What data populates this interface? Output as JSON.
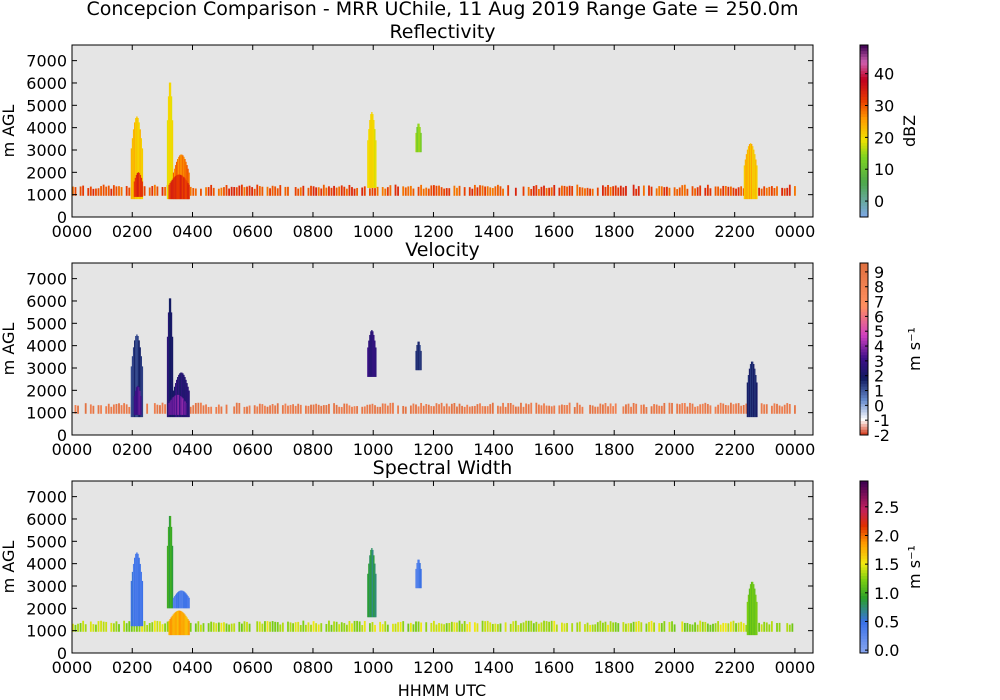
{
  "title": "Concepcion Comparison - MRR UChile, 11 Aug 2019 Range Gate = 250.0m",
  "xlabel": "HHMM UTC",
  "chart_data": [
    {
      "type": "heatmap",
      "title": "Reflectivity",
      "ylabel": "m AGL",
      "xticks": [
        "0000",
        "0200",
        "0400",
        "0600",
        "0800",
        "1000",
        "1200",
        "1400",
        "1600",
        "1800",
        "2000",
        "2200",
        "0000"
      ],
      "yticks": [
        "0",
        "1000",
        "2000",
        "3000",
        "4000",
        "5000",
        "6000",
        "7000"
      ],
      "ylim": [
        0,
        7700
      ],
      "xlim_hours": [
        0,
        24.6
      ],
      "colorbar": {
        "label": "dBZ",
        "range": [
          -5,
          49
        ],
        "ticks": [
          "0",
          "10",
          "20",
          "30",
          "40"
        ],
        "tick_values": [
          0,
          10,
          20,
          30,
          40
        ]
      },
      "cells": [
        {
          "t0": 1.95,
          "t1": 2.35,
          "z0": 800,
          "z1": 4500,
          "v": 22
        },
        {
          "t0": 2.05,
          "t1": 2.35,
          "z0": 900,
          "z1": 2000,
          "v": 33
        },
        {
          "t0": 3.15,
          "t1": 3.35,
          "z0": 800,
          "z1": 6100,
          "v": 20
        },
        {
          "t0": 3.35,
          "t1": 3.9,
          "z0": 800,
          "z1": 2800,
          "v": 28
        },
        {
          "t0": 3.2,
          "t1": 3.9,
          "z0": 800,
          "z1": 1900,
          "v": 33
        },
        {
          "t0": 9.8,
          "t1": 10.1,
          "z0": 1300,
          "z1": 4700,
          "v": 19
        },
        {
          "t0": 11.4,
          "t1": 11.6,
          "z0": 2900,
          "z1": 4200,
          "v": 14
        },
        {
          "t0": 22.3,
          "t1": 22.75,
          "z0": 800,
          "z1": 3300,
          "v": 23
        }
      ],
      "surface_band": {
        "z0": 950,
        "z1": 1350,
        "v": 31
      }
    },
    {
      "type": "heatmap",
      "title": "Velocity",
      "ylabel": "m AGL",
      "xticks": [
        "0000",
        "0200",
        "0400",
        "0600",
        "0800",
        "1000",
        "1200",
        "1400",
        "1600",
        "1800",
        "2000",
        "2200",
        "0000"
      ],
      "yticks": [
        "0",
        "1000",
        "2000",
        "3000",
        "4000",
        "5000",
        "6000",
        "7000"
      ],
      "ylim": [
        0,
        7700
      ],
      "xlim_hours": [
        0,
        24.6
      ],
      "colorbar": {
        "label": "m s⁻¹",
        "range": [
          -2,
          9.6
        ],
        "ticks": [
          "-2",
          "-1",
          "0",
          "1",
          "2",
          "3",
          "4",
          "5",
          "6",
          "7",
          "8",
          "9"
        ],
        "tick_values": [
          -2,
          -1,
          0,
          1,
          2,
          3,
          4,
          5,
          6,
          7,
          8,
          9
        ]
      },
      "cells": [
        {
          "t0": 1.95,
          "t1": 2.35,
          "z0": 800,
          "z1": 4500,
          "v": 1.5
        },
        {
          "t0": 2.05,
          "t1": 2.3,
          "z0": 900,
          "z1": 2200,
          "v": 3.2
        },
        {
          "t0": 3.15,
          "t1": 3.35,
          "z0": 800,
          "z1": 6200,
          "v": 2.2
        },
        {
          "t0": 3.35,
          "t1": 3.9,
          "z0": 800,
          "z1": 2800,
          "v": 2.5
        },
        {
          "t0": 3.2,
          "t1": 3.8,
          "z0": 900,
          "z1": 1800,
          "v": 3.6
        },
        {
          "t0": 9.8,
          "t1": 10.1,
          "z0": 2600,
          "z1": 4700,
          "v": 2.8
        },
        {
          "t0": 11.4,
          "t1": 11.6,
          "z0": 2900,
          "z1": 4200,
          "v": 1.6
        },
        {
          "t0": 22.4,
          "t1": 22.75,
          "z0": 800,
          "z1": 3300,
          "v": 1.8
        }
      ],
      "surface_band": {
        "z0": 950,
        "z1": 1350,
        "v": 8.7
      }
    },
    {
      "type": "heatmap",
      "title": "Spectral Width",
      "ylabel": "m AGL",
      "xticks": [
        "0000",
        "0200",
        "0400",
        "0600",
        "0800",
        "1000",
        "1200",
        "1400",
        "1600",
        "1800",
        "2000",
        "2200",
        "0000"
      ],
      "yticks": [
        "0",
        "1000",
        "2000",
        "3000",
        "4000",
        "5000",
        "6000",
        "7000"
      ],
      "ylim": [
        0,
        7700
      ],
      "xlim_hours": [
        0,
        24.6
      ],
      "colorbar": {
        "label": "m s⁻¹",
        "range": [
          -0.05,
          2.95
        ],
        "ticks": [
          "0.0",
          "0.5",
          "1.0",
          "1.5",
          "2.0",
          "2.5"
        ],
        "tick_values": [
          0,
          0.5,
          1,
          1.5,
          2,
          2.5
        ]
      },
      "cells": [
        {
          "t0": 1.95,
          "t1": 2.35,
          "z0": 1200,
          "z1": 4500,
          "v": 0.45
        },
        {
          "t0": 3.15,
          "t1": 3.35,
          "z0": 2000,
          "z1": 6200,
          "v": 0.9
        },
        {
          "t0": 3.35,
          "t1": 3.9,
          "z0": 2000,
          "z1": 2800,
          "v": 0.4
        },
        {
          "t0": 3.2,
          "t1": 3.9,
          "z0": 800,
          "z1": 1900,
          "v": 1.8
        },
        {
          "t0": 9.8,
          "t1": 10.1,
          "z0": 1600,
          "z1": 4700,
          "v": 0.8
        },
        {
          "t0": 11.4,
          "t1": 11.6,
          "z0": 2900,
          "z1": 4200,
          "v": 0.4
        },
        {
          "t0": 22.4,
          "t1": 22.75,
          "z0": 800,
          "z1": 3200,
          "v": 1.2
        }
      ],
      "surface_band": {
        "z0": 950,
        "z1": 1350,
        "v": 1.35
      }
    }
  ]
}
